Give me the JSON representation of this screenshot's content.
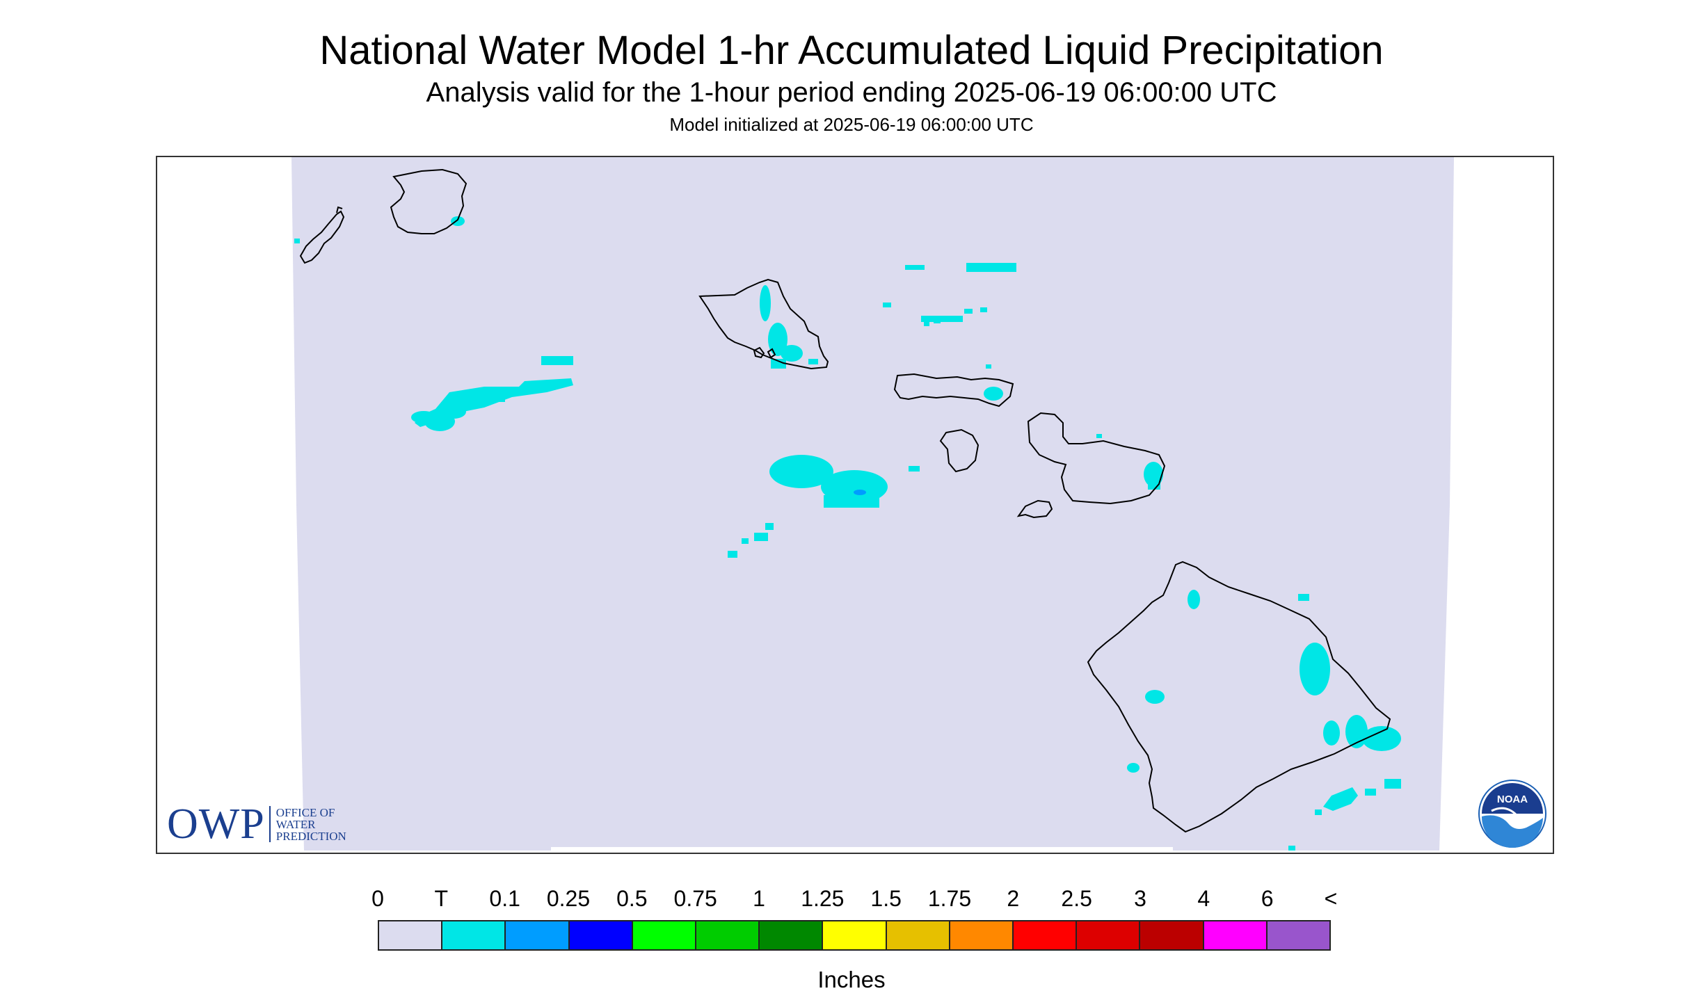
{
  "header": {
    "title": "National Water Model 1-hr Accumulated Liquid Precipitation",
    "subtitle": "Analysis valid for the 1-hour period ending 2025-06-19 06:00:00 UTC",
    "init": "Model initialized at 2025-06-19 06:00:00 UTC"
  },
  "map": {
    "background_color": "#dcdcef",
    "coastline_color": "#000000",
    "precip_color": "#00e6e6",
    "precip_strong_color": "#009dff",
    "islands": [
      "niihau",
      "kauai",
      "oahu",
      "molokai",
      "lanai",
      "maui",
      "kahoolawe",
      "hawaii"
    ]
  },
  "legend": {
    "labels": [
      "0",
      "T",
      "0.1",
      "0.25",
      "0.5",
      "0.75",
      "1",
      "1.25",
      "1.5",
      "1.75",
      "2",
      "2.5",
      "3",
      "4",
      "6",
      "<"
    ],
    "colors": [
      "#dcdcef",
      "#00e6e6",
      "#009dff",
      "#0000ff",
      "#00ff00",
      "#00cc00",
      "#008800",
      "#ffff00",
      "#e6c000",
      "#ff8800",
      "#ff0000",
      "#dd0000",
      "#bb0000",
      "#ff00ff",
      "#9955cc"
    ],
    "unit_label": "Inches"
  },
  "logos": {
    "owp": {
      "letters": "OWP",
      "line1": "OFFICE OF",
      "line2": "WATER",
      "line3": "PREDICTION",
      "color": "#1b3f8f"
    },
    "noaa": {
      "text": "NOAA",
      "color": "#1a5fb4"
    }
  }
}
